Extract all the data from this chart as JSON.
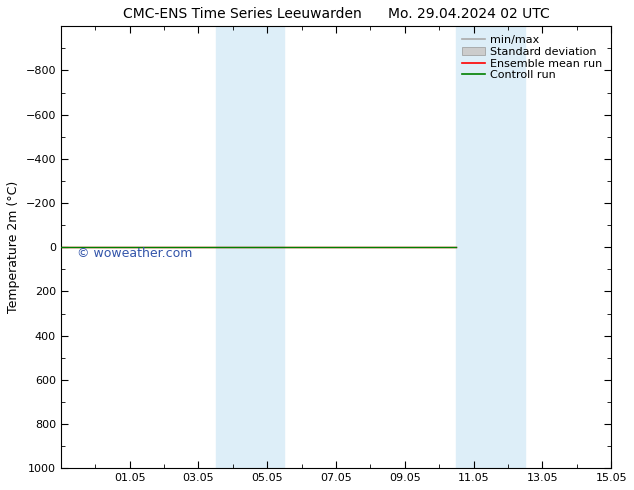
{
  "title_left": "CMC-ENS Time Series Leeuwarden",
  "title_right": "Mo. 29.04.2024 02 UTC",
  "ylabel": "Temperature 2m (°C)",
  "ylim_bottom": 1000,
  "ylim_top": -1000,
  "yticks": [
    -800,
    -600,
    -400,
    -200,
    0,
    200,
    400,
    600,
    800,
    1000
  ],
  "x_min": 0,
  "x_max": 16,
  "xtick_labels": [
    "01.05",
    "03.05",
    "05.05",
    "07.05",
    "09.05",
    "11.05",
    "13.05",
    "15.05"
  ],
  "xtick_positions": [
    2,
    4,
    6,
    8,
    10,
    12,
    14,
    16
  ],
  "shaded_bands": [
    {
      "x_start": 4.5,
      "x_end": 5.5
    },
    {
      "x_start": 5.5,
      "x_end": 6.5
    },
    {
      "x_start": 11.5,
      "x_end": 12.5
    },
    {
      "x_start": 12.5,
      "x_end": 13.5
    }
  ],
  "shade_color": "#ddeef8",
  "control_run_x_end": 11.5,
  "control_run_color": "#008000",
  "ensemble_mean_color": "#ff0000",
  "watermark": "© woweather.com",
  "watermark_color": "#3355aa",
  "legend_items": [
    "min/max",
    "Standard deviation",
    "Ensemble mean run",
    "Controll run"
  ],
  "legend_line_color": "#aaaaaa",
  "legend_patch_color": "#cccccc",
  "ensemble_mean_color_leg": "#ff0000",
  "control_run_color_leg": "#008000",
  "bg_color": "#ffffff",
  "font_size_title": 10,
  "font_size_axis": 9,
  "font_size_tick": 8,
  "font_size_legend": 8,
  "font_size_watermark": 9
}
